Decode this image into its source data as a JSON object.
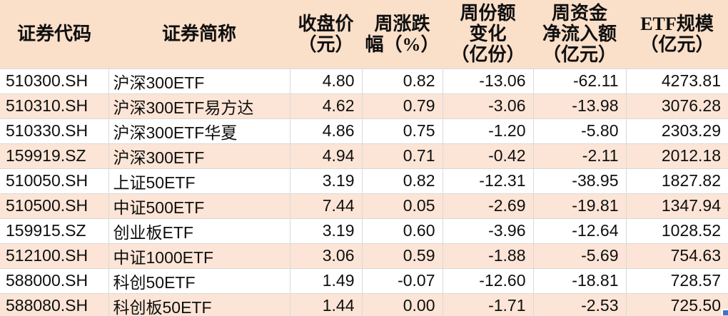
{
  "colors": {
    "header_bg": "#FADFC9",
    "stripe_bg": "#FCE5D6",
    "row_bg": "#FFFFFF",
    "gridline": "#D9D9D9",
    "text": "#0F0F0F",
    "selection_handle": "#4472C4"
  },
  "table": {
    "columns": [
      {
        "key": "code",
        "label": "证券代码",
        "align": "left"
      },
      {
        "key": "name",
        "label": "证券简称",
        "align": "left"
      },
      {
        "key": "close-price",
        "label": "收盘价\n（元）",
        "align": "right"
      },
      {
        "key": "weekly-change",
        "label": "周涨跌\n幅（%）",
        "align": "right"
      },
      {
        "key": "share-change",
        "label": "周份额\n变化\n（亿份）",
        "align": "right"
      },
      {
        "key": "net-inflow",
        "label": "周资金\n净流入额\n（亿元）",
        "align": "right"
      },
      {
        "key": "etf-scale",
        "label": "ETF规模\n（亿元）",
        "align": "right"
      }
    ],
    "rows": [
      [
        "510300.SH",
        "沪深300ETF",
        "4.80",
        "0.82",
        "-13.06",
        "-62.11",
        "4273.81"
      ],
      [
        "510310.SH",
        "沪深300ETF易方达",
        "4.62",
        "0.79",
        "-3.06",
        "-13.98",
        "3076.28"
      ],
      [
        "510330.SH",
        "沪深300ETF华夏",
        "4.86",
        "0.75",
        "-1.20",
        "-5.80",
        "2303.29"
      ],
      [
        "159919.SZ",
        "沪深300ETF",
        "4.94",
        "0.71",
        "-0.42",
        "-2.11",
        "2012.18"
      ],
      [
        "510050.SH",
        "上证50ETF",
        "3.19",
        "0.82",
        "-12.31",
        "-38.95",
        "1827.82"
      ],
      [
        "510500.SH",
        "中证500ETF",
        "7.44",
        "0.05",
        "-2.69",
        "-19.81",
        "1347.94"
      ],
      [
        "159915.SZ",
        "创业板ETF",
        "3.19",
        "0.60",
        "-3.96",
        "-12.64",
        "1028.52"
      ],
      [
        "512100.SH",
        "中证1000ETF",
        "3.06",
        "0.59",
        "-1.88",
        "-5.69",
        "754.63"
      ],
      [
        "588000.SH",
        "科创50ETF",
        "1.49",
        "-0.07",
        "-12.60",
        "-18.81",
        "728.57"
      ],
      [
        "588080.SH",
        "科创板50ETF",
        "1.44",
        "0.00",
        "-1.71",
        "-2.53",
        "725.50"
      ]
    ]
  }
}
